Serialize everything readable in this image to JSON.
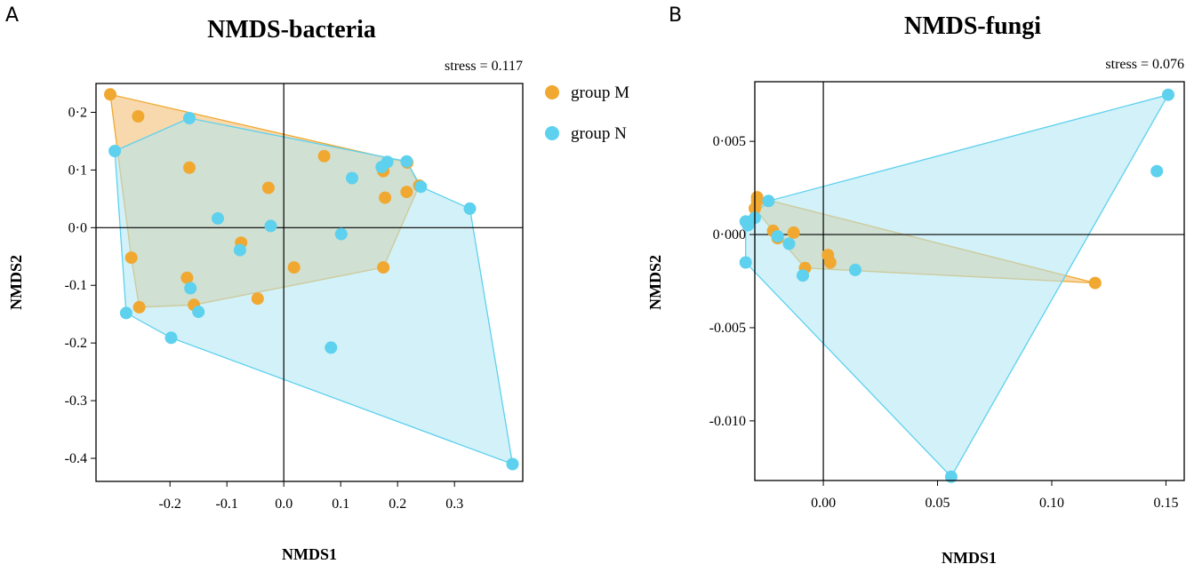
{
  "chart_data": [
    {
      "type": "scatter",
      "panel": "A",
      "title": "NMDS-bacteria",
      "stress": "stress = 0.117",
      "xlabel": "NMDS1",
      "ylabel": "NMDS2",
      "xlim": [
        -0.33,
        0.42
      ],
      "ylim": [
        -0.44,
        0.25
      ],
      "xticks": [
        -0.2,
        -0.1,
        0.0,
        0.1,
        0.2,
        0.3
      ],
      "xtick_labels": [
        "-0.2",
        "-0.1",
        "0.0",
        "0.1",
        "0.2",
        "0.3"
      ],
      "yticks": [
        0.2,
        0.1,
        0.0,
        -0.1,
        -0.2,
        -0.3,
        -0.4
      ],
      "ytick_labels": [
        "0·2",
        "0·1",
        "0·0",
        "-0.1",
        "-0.2",
        "-0.3",
        "-0.4"
      ],
      "legend": {
        "placement": "outside-right",
        "entries": [
          "group M",
          "group N"
        ]
      },
      "series": [
        {
          "name": "group M",
          "color": "#f0a830",
          "hull_fill": "#f5c98a",
          "points": [
            [
              -0.305,
              0.231
            ],
            [
              -0.256,
              0.193
            ],
            [
              -0.166,
              0.104
            ],
            [
              -0.027,
              0.069
            ],
            [
              0.071,
              0.124
            ],
            [
              0.175,
              0.098
            ],
            [
              0.178,
              0.052
            ],
            [
              0.217,
              0.113
            ],
            [
              0.216,
              0.062
            ],
            [
              0.238,
              0.073
            ],
            [
              -0.075,
              -0.026
            ],
            [
              0.018,
              -0.069
            ],
            [
              -0.268,
              -0.052
            ],
            [
              -0.17,
              -0.087
            ],
            [
              -0.158,
              -0.134
            ],
            [
              -0.254,
              -0.138
            ],
            [
              -0.046,
              -0.123
            ],
            [
              0.175,
              -0.069
            ]
          ],
          "hull": [
            [
              -0.305,
              0.231
            ],
            [
              0.217,
              0.113
            ],
            [
              0.238,
              0.073
            ],
            [
              0.175,
              -0.069
            ],
            [
              -0.158,
              -0.134
            ],
            [
              -0.254,
              -0.138
            ],
            [
              -0.268,
              -0.052
            ]
          ]
        },
        {
          "name": "group N",
          "color": "#5dd1ee",
          "hull_fill": "#aee6f3",
          "points": [
            [
              -0.166,
              0.19
            ],
            [
              -0.297,
              0.133
            ],
            [
              0.12,
              0.086
            ],
            [
              0.172,
              0.105
            ],
            [
              0.182,
              0.114
            ],
            [
              0.216,
              0.115
            ],
            [
              0.241,
              0.071
            ],
            [
              0.327,
              0.033
            ],
            [
              -0.116,
              0.016
            ],
            [
              -0.023,
              0.003
            ],
            [
              0.101,
              -0.011
            ],
            [
              -0.077,
              -0.039
            ],
            [
              -0.164,
              -0.105
            ],
            [
              -0.15,
              -0.146
            ],
            [
              -0.277,
              -0.148
            ],
            [
              -0.198,
              -0.191
            ],
            [
              0.083,
              -0.208
            ],
            [
              0.402,
              -0.41
            ]
          ],
          "hull": [
            [
              -0.297,
              0.133
            ],
            [
              -0.166,
              0.19
            ],
            [
              0.216,
              0.115
            ],
            [
              0.241,
              0.071
            ],
            [
              0.327,
              0.033
            ],
            [
              0.402,
              -0.41
            ],
            [
              -0.198,
              -0.191
            ],
            [
              -0.277,
              -0.148
            ]
          ]
        }
      ]
    },
    {
      "type": "scatter",
      "panel": "B",
      "title": "NMDS-fungi",
      "stress": "stress = 0.076",
      "xlabel": "NMDS1",
      "ylabel": "NMDS2",
      "xlim": [
        -0.03,
        0.158
      ],
      "ylim": [
        -0.0132,
        0.0082
      ],
      "xticks": [
        0.0,
        0.05,
        0.1,
        0.15
      ],
      "xtick_labels": [
        "0.00",
        "0.05",
        "0.10",
        "0.15"
      ],
      "yticks": [
        0.005,
        0.0,
        -0.005,
        -0.01
      ],
      "ytick_labels": [
        "0·005",
        "0·000",
        "-0.005",
        "-0.010"
      ],
      "series": [
        {
          "name": "group M",
          "color": "#f0a830",
          "hull_fill": "#f5c98a",
          "points": [
            [
              -0.029,
              0.0018
            ],
            [
              -0.03,
              0.0014
            ],
            [
              -0.029,
              0.002
            ],
            [
              -0.022,
              0.0002
            ],
            [
              -0.013,
              0.0001
            ],
            [
              -0.02,
              -0.0002
            ],
            [
              -0.008,
              -0.0018
            ],
            [
              0.002,
              -0.0011
            ],
            [
              0.003,
              -0.0015
            ],
            [
              0.119,
              -0.0026
            ]
          ],
          "hull": [
            [
              -0.03,
              0.0014
            ],
            [
              -0.029,
              0.002
            ],
            [
              0.119,
              -0.0026
            ],
            [
              -0.008,
              -0.0018
            ],
            [
              -0.022,
              0.0002
            ]
          ]
        },
        {
          "name": "group N",
          "color": "#5dd1ee",
          "hull_fill": "#aee6f3",
          "points": [
            [
              -0.03,
              0.0009
            ],
            [
              -0.033,
              0.0005
            ],
            [
              -0.034,
              0.0007
            ],
            [
              -0.024,
              0.0018
            ],
            [
              -0.02,
              -0.0001
            ],
            [
              -0.015,
              -0.0005
            ],
            [
              -0.009,
              -0.0022
            ],
            [
              0.014,
              -0.0019
            ],
            [
              -0.034,
              -0.0015
            ],
            [
              0.146,
              0.0034
            ],
            [
              0.151,
              0.0075
            ],
            [
              0.056,
              -0.013
            ]
          ],
          "hull": [
            [
              -0.034,
              0.0007
            ],
            [
              -0.024,
              0.0018
            ],
            [
              0.151,
              0.0075
            ],
            [
              0.056,
              -0.013
            ],
            [
              -0.034,
              -0.0015
            ]
          ]
        }
      ]
    }
  ]
}
